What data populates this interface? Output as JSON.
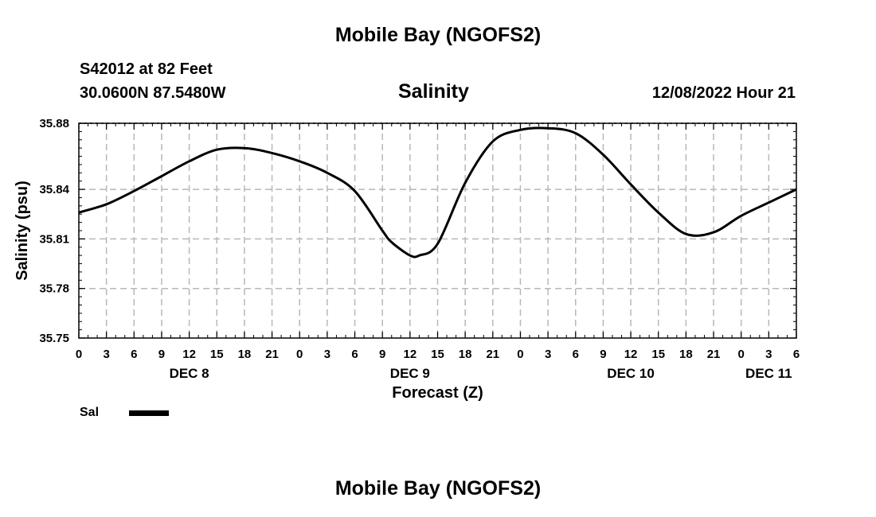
{
  "header": {
    "title": "Mobile Bay (NGOFS2)",
    "station": "S42012 at 82 Feet",
    "coords": "30.0600N  87.5480W",
    "chart_title": "Salinity",
    "datetime": "12/08/2022 Hour 21"
  },
  "legend": {
    "label": "Sal"
  },
  "footer": {
    "title": "Mobile Bay (NGOFS2)"
  },
  "chart_data": {
    "type": "line",
    "title": "Salinity",
    "xlabel": "Forecast (Z)",
    "ylabel": "Salinity (psu)",
    "ylim": [
      35.75,
      35.88
    ],
    "yticks": [
      "35.75",
      "35.78",
      "35.81",
      "35.84",
      "35.88"
    ],
    "xlim_hours": [
      0,
      78
    ],
    "xtick_labels": [
      "0",
      "3",
      "6",
      "9",
      "12",
      "15",
      "18",
      "21",
      "0",
      "3",
      "6",
      "9",
      "12",
      "15",
      "18",
      "21",
      "0",
      "3",
      "6",
      "9",
      "12",
      "15",
      "18",
      "21",
      "0",
      "3",
      "6"
    ],
    "day_labels": [
      {
        "label": "DEC 8",
        "hour": 12
      },
      {
        "label": "DEC 9",
        "hour": 36
      },
      {
        "label": "DEC 10",
        "hour": 60
      },
      {
        "label": "DEC 11",
        "hour": 75
      }
    ],
    "grid": true,
    "series": [
      {
        "name": "Sal",
        "x_hours": [
          0,
          3,
          6,
          9,
          12,
          15,
          18,
          21,
          24,
          27,
          30,
          33,
          34,
          36,
          37,
          39,
          42,
          45,
          48,
          51,
          54,
          57,
          60,
          63,
          66,
          69,
          72,
          75,
          78
        ],
        "values": [
          35.826,
          35.831,
          35.839,
          35.848,
          35.857,
          35.864,
          35.865,
          35.862,
          35.857,
          35.85,
          35.839,
          35.815,
          35.808,
          35.8,
          35.8,
          35.807,
          35.844,
          35.869,
          35.876,
          35.877,
          35.874,
          35.861,
          35.843,
          35.826,
          35.813,
          35.814,
          35.824,
          35.832,
          35.84
        ]
      }
    ]
  }
}
